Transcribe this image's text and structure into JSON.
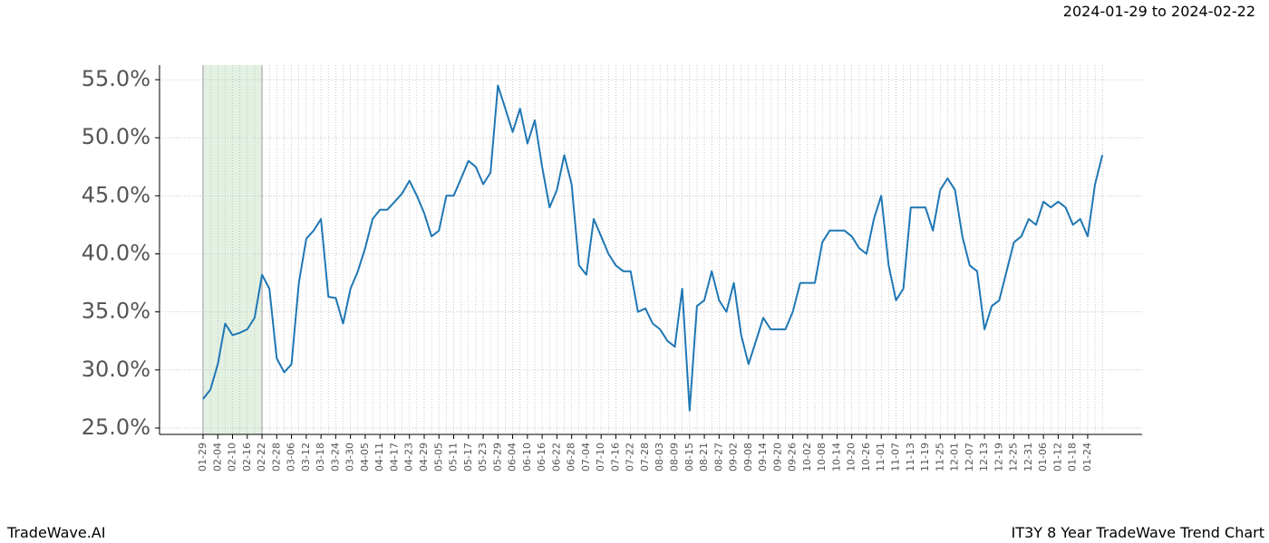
{
  "chart_data": {
    "type": "line",
    "title": "IT3Y 8 Year TradeWave Trend Chart",
    "subtitle": "2024-01-29 to 2024-02-22",
    "footer_left": "TradeWave.AI",
    "highlight": {
      "from": "01-29",
      "to": "02-22",
      "color": "#e3f1e3"
    },
    "categories": [
      "01-29",
      null,
      "02-04",
      null,
      "02-10",
      null,
      "02-16",
      null,
      "02-22",
      null,
      "02-28",
      null,
      "03-06",
      null,
      "03-12",
      null,
      "03-18",
      null,
      "03-24",
      null,
      "03-30",
      null,
      "04-05",
      null,
      "04-11",
      null,
      "04-17",
      null,
      "04-23",
      null,
      "04-29",
      null,
      "05-05",
      null,
      "05-11",
      null,
      "05-17",
      null,
      "05-23",
      null,
      "05-29",
      null,
      "06-04",
      null,
      "06-10",
      null,
      "06-16",
      null,
      "06-22",
      null,
      "06-28",
      null,
      "07-04",
      null,
      "07-10",
      null,
      "07-16",
      null,
      "07-22",
      null,
      "07-28",
      null,
      "08-03",
      null,
      "08-09",
      null,
      "08-15",
      null,
      "08-21",
      null,
      "08-27",
      null,
      "09-02",
      null,
      "09-08",
      null,
      "09-14",
      null,
      "09-20",
      null,
      "09-26",
      null,
      "10-02",
      null,
      "10-08",
      null,
      "10-14",
      null,
      "10-20",
      null,
      "10-26",
      null,
      "11-01",
      null,
      "11-07",
      null,
      "11-13",
      null,
      "11-19",
      null,
      "11-25",
      null,
      "12-01",
      null,
      "12-07",
      null,
      "12-13",
      null,
      "12-19",
      null,
      "12-25",
      null,
      "12-31",
      null,
      "01-06",
      null,
      "01-12",
      null,
      "01-18",
      null,
      "01-24",
      null,
      null
    ],
    "values": [
      27.5,
      28.3,
      30.5,
      34.0,
      33.0,
      33.2,
      33.5,
      34.5,
      38.2,
      37.0,
      31.0,
      29.8,
      30.5,
      37.5,
      41.3,
      42.0,
      43.0,
      36.3,
      36.2,
      34.0,
      37.0,
      38.5,
      40.5,
      43.0,
      43.8,
      43.8,
      44.5,
      45.2,
      46.3,
      45.0,
      43.5,
      41.5,
      42.0,
      45.0,
      45.0,
      46.5,
      48.0,
      47.5,
      46.0,
      47.0,
      54.5,
      52.5,
      50.5,
      52.5,
      49.5,
      51.5,
      47.5,
      44.0,
      45.5,
      48.5,
      46.0,
      39.0,
      38.2,
      43.0,
      41.5,
      40.0,
      39.0,
      38.5,
      38.5,
      35.0,
      35.3,
      34.0,
      33.5,
      32.5,
      32.0,
      37.0,
      26.5,
      35.5,
      36.0,
      38.5,
      36.0,
      35.0,
      37.5,
      33.0,
      30.5,
      32.5,
      34.5,
      33.5,
      33.5,
      33.5,
      35.0,
      37.5,
      37.5,
      37.5,
      41.0,
      42.0,
      42.0,
      42.0,
      41.5,
      40.5,
      40.0,
      43.0,
      45.0,
      39.0,
      36.0,
      37.0,
      44.0,
      44.0,
      44.0,
      42.0,
      45.5,
      46.5,
      45.5,
      41.5,
      39.0,
      38.5,
      33.5,
      35.5,
      36.0,
      38.5,
      41.0,
      41.5,
      43.0,
      42.5,
      44.5,
      44.0,
      44.5,
      44.0,
      42.5,
      43.0,
      41.5,
      46.0,
      48.5
    ],
    "color": "#1f77b4",
    "ylim": [
      24.45,
      56.25
    ],
    "yticks": [
      {
        "value": 25,
        "label": "25.0%"
      },
      {
        "value": 30,
        "label": "30.0%"
      },
      {
        "value": 35,
        "label": "35.0%"
      },
      {
        "value": 40,
        "label": "40.0%"
      },
      {
        "value": 45,
        "label": "45.0%"
      },
      {
        "value": 50,
        "label": "50.0%"
      },
      {
        "value": 55,
        "label": "55.0%"
      }
    ],
    "grid": true
  }
}
